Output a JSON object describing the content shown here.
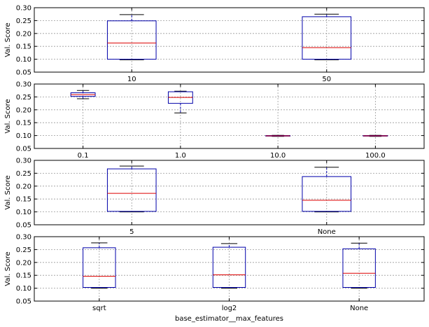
{
  "chart_data": [
    {
      "type": "box",
      "ylabel": "Val. Score",
      "xlabel": "",
      "ylim": [
        0.05,
        0.3
      ],
      "yticks": [
        "0.05",
        "0.10",
        "0.15",
        "0.20",
        "0.25",
        "0.30"
      ],
      "grid": true,
      "categories": [
        "10",
        "50"
      ],
      "boxes": [
        {
          "whislo": 0.098,
          "q1": 0.1,
          "med": 0.163,
          "q3": 0.249,
          "whishi": 0.273
        },
        {
          "whislo": 0.098,
          "q1": 0.1,
          "med": 0.145,
          "q3": 0.265,
          "whishi": 0.275
        }
      ]
    },
    {
      "type": "box",
      "ylabel": "Val. Score",
      "xlabel": "",
      "ylim": [
        0.05,
        0.3
      ],
      "yticks": [
        "0.05",
        "0.10",
        "0.15",
        "0.20",
        "0.25",
        "0.30"
      ],
      "grid": true,
      "categories": [
        "0.1",
        "1.0",
        "10.0",
        "100.0"
      ],
      "boxes": [
        {
          "whislo": 0.243,
          "q1": 0.252,
          "med": 0.259,
          "q3": 0.266,
          "whishi": 0.275
        },
        {
          "whislo": 0.188,
          "q1": 0.225,
          "med": 0.248,
          "q3": 0.27,
          "whishi": 0.272
        },
        {
          "whislo": 0.097,
          "q1": 0.098,
          "med": 0.099,
          "q3": 0.1,
          "whishi": 0.101
        },
        {
          "whislo": 0.097,
          "q1": 0.098,
          "med": 0.099,
          "q3": 0.1,
          "whishi": 0.101
        }
      ]
    },
    {
      "type": "box",
      "ylabel": "Val. Score",
      "xlabel": "",
      "ylim": [
        0.05,
        0.3
      ],
      "yticks": [
        "0.05",
        "0.10",
        "0.15",
        "0.20",
        "0.25",
        "0.30"
      ],
      "grid": true,
      "categories": [
        "5",
        "None"
      ],
      "boxes": [
        {
          "whislo": 0.1,
          "q1": 0.102,
          "med": 0.172,
          "q3": 0.267,
          "whishi": 0.278
        },
        {
          "whislo": 0.1,
          "q1": 0.102,
          "med": 0.145,
          "q3": 0.237,
          "whishi": 0.273
        }
      ]
    },
    {
      "type": "box",
      "ylabel": "Val. Score",
      "xlabel": "base_estimator__max_features",
      "ylim": [
        0.05,
        0.3
      ],
      "yticks": [
        "0.05",
        "0.10",
        "0.15",
        "0.20",
        "0.25",
        "0.30"
      ],
      "grid": true,
      "categories": [
        "sqrt",
        "log2",
        "None"
      ],
      "boxes": [
        {
          "whislo": 0.1,
          "q1": 0.103,
          "med": 0.146,
          "q3": 0.257,
          "whishi": 0.276
        },
        {
          "whislo": 0.1,
          "q1": 0.103,
          "med": 0.152,
          "q3": 0.259,
          "whishi": 0.273
        },
        {
          "whislo": 0.1,
          "q1": 0.103,
          "med": 0.158,
          "q3": 0.253,
          "whishi": 0.275
        }
      ]
    }
  ]
}
